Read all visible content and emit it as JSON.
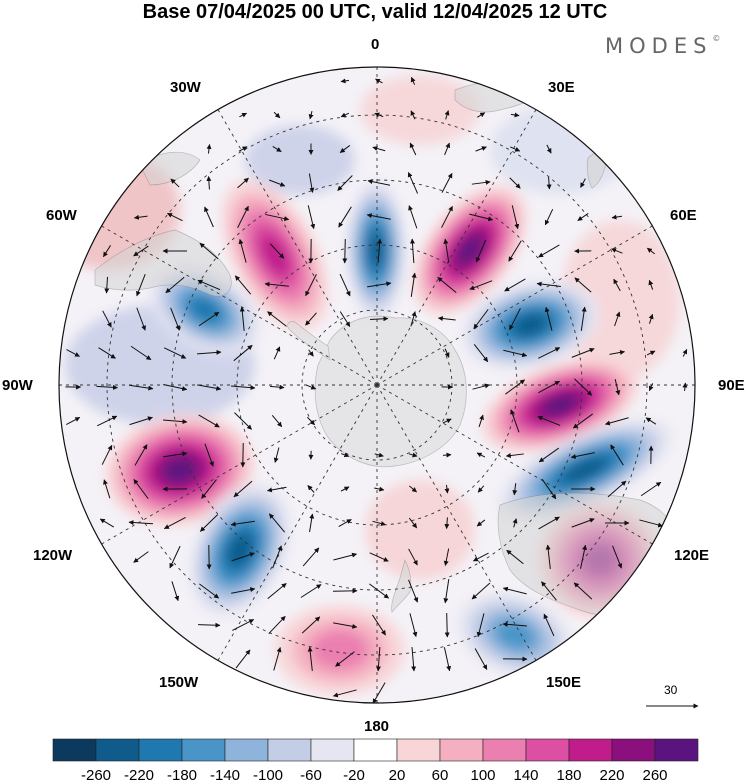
{
  "title": "Base 07/04/2025 00 UTC, valid 12/04/2025 12 UTC",
  "brand": "MODES",
  "brand_mark": "©",
  "map": {
    "projection": "south-polar-stereographic",
    "longitude_labels": {
      "top": "0",
      "top_right": "30E",
      "right_upper": "60E",
      "right": "90E",
      "right_lower": "120E",
      "bottom_right": "150E",
      "bottom": "180",
      "bottom_left": "150W",
      "left_lower": "120W",
      "left": "90W",
      "left_upper": "60W",
      "top_left": "30W"
    },
    "reference_vector_label": "30",
    "field_colors": {
      "-260": "#0b3a5e",
      "-220": "#0f5c8c",
      "-180": "#1f78b0",
      "-140": "#4a95c8",
      "-100": "#8fb4dc",
      "-60": "#c3cde6",
      "-20": "#e6e6f2",
      "20": "#ffffff",
      "60": "#f8d6d8",
      "100": "#f4afc0",
      "140": "#eb7fb0",
      "180": "#dc4fa2",
      "220": "#c01c8c",
      "260": "#8c0f7e",
      "300": "#5b1380"
    }
  },
  "colorbar": {
    "colors": [
      "#0b3a5e",
      "#0f5c8c",
      "#1f78b0",
      "#4a95c8",
      "#8fb4dc",
      "#c3cde6",
      "#e6e6f2",
      "#ffffff",
      "#f8d6d8",
      "#f4afc0",
      "#eb7fb0",
      "#dc4fa2",
      "#c01c8c",
      "#8c0f7e",
      "#5b1380"
    ],
    "tick_labels": [
      "-260",
      "-220",
      "-180",
      "-140",
      "-100",
      "-60",
      "-20",
      "20",
      "60",
      "100",
      "140",
      "180",
      "220",
      "260"
    ]
  },
  "anomalies": [
    {
      "name": "pos-east-30e",
      "value": 240
    },
    {
      "name": "neg-north-0",
      "value": -220
    },
    {
      "name": "pos-north-west",
      "value": 190
    },
    {
      "name": "neg-east-60e",
      "value": -220
    },
    {
      "name": "pos-east-90e",
      "value": 250
    },
    {
      "name": "neg-east-105e",
      "value": -220
    },
    {
      "name": "pos-southeast-130e",
      "value": 200
    },
    {
      "name": "neg-south-150e",
      "value": -150
    },
    {
      "name": "pos-west-110w",
      "value": 260
    },
    {
      "name": "neg-southwest-135w",
      "value": -200
    },
    {
      "name": "neg-west-60w",
      "value": -160
    },
    {
      "name": "pos-south-170w",
      "value": 90
    }
  ]
}
